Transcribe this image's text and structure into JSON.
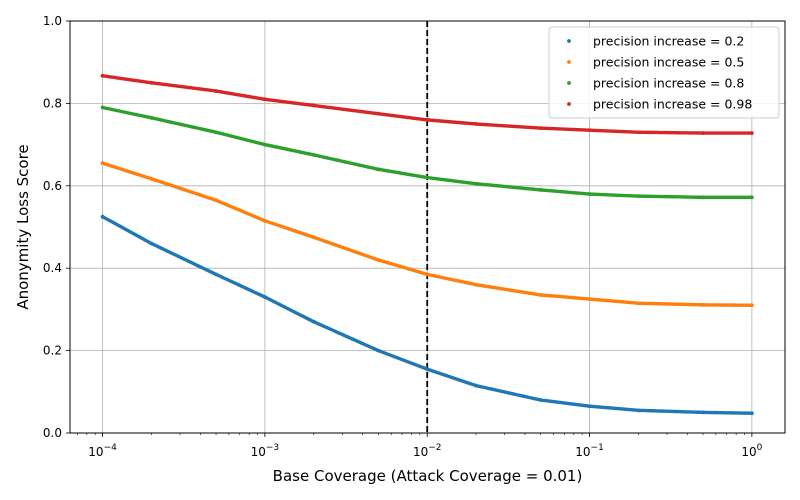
{
  "chart_data": {
    "type": "scatter",
    "title": "",
    "xlabel": "Base Coverage (Attack Coverage = 0.01)",
    "ylabel": "Anonymity Loss Score",
    "xscale": "log",
    "xlim": [
      6.3e-05,
      1.6
    ],
    "ylim": [
      0,
      1
    ],
    "x_ticks": [
      {
        "base": "10",
        "exp": "−4",
        "value": 0.0001
      },
      {
        "base": "10",
        "exp": "−3",
        "value": 0.001
      },
      {
        "base": "10",
        "exp": "−2",
        "value": 0.01
      },
      {
        "base": "10",
        "exp": "−1",
        "value": 0.1
      },
      {
        "base": "10",
        "exp": "0",
        "value": 1
      }
    ],
    "y_ticks": [
      "0.0",
      "0.2",
      "0.4",
      "0.6",
      "0.8",
      "1.0"
    ],
    "grid": true,
    "legend_position": "top-right",
    "vline": {
      "x": 0.01,
      "style": "dashed",
      "color": "#000000"
    },
    "x": [
      0.0001,
      0.0002,
      0.0005,
      0.001,
      0.002,
      0.005,
      0.01,
      0.02,
      0.05,
      0.1,
      0.2,
      0.5,
      1
    ],
    "series": [
      {
        "name": "precision increase = 0.2",
        "color": "#1f77b4",
        "values": [
          0.525,
          0.46,
          0.385,
          0.33,
          0.27,
          0.2,
          0.155,
          0.115,
          0.08,
          0.065,
          0.055,
          0.05,
          0.048
        ]
      },
      {
        "name": "precision increase = 0.5",
        "color": "#ff7f0e",
        "values": [
          0.655,
          0.617,
          0.565,
          0.515,
          0.475,
          0.42,
          0.385,
          0.36,
          0.335,
          0.325,
          0.315,
          0.311,
          0.31
        ]
      },
      {
        "name": "precision increase = 0.8",
        "color": "#2ca02c",
        "values": [
          0.79,
          0.765,
          0.73,
          0.7,
          0.675,
          0.64,
          0.62,
          0.605,
          0.59,
          0.58,
          0.575,
          0.572,
          0.572
        ]
      },
      {
        "name": "precision increase = 0.98",
        "color": "#d62728",
        "values": [
          0.867,
          0.85,
          0.83,
          0.81,
          0.795,
          0.775,
          0.76,
          0.75,
          0.74,
          0.735,
          0.73,
          0.728,
          0.728
        ]
      }
    ]
  }
}
